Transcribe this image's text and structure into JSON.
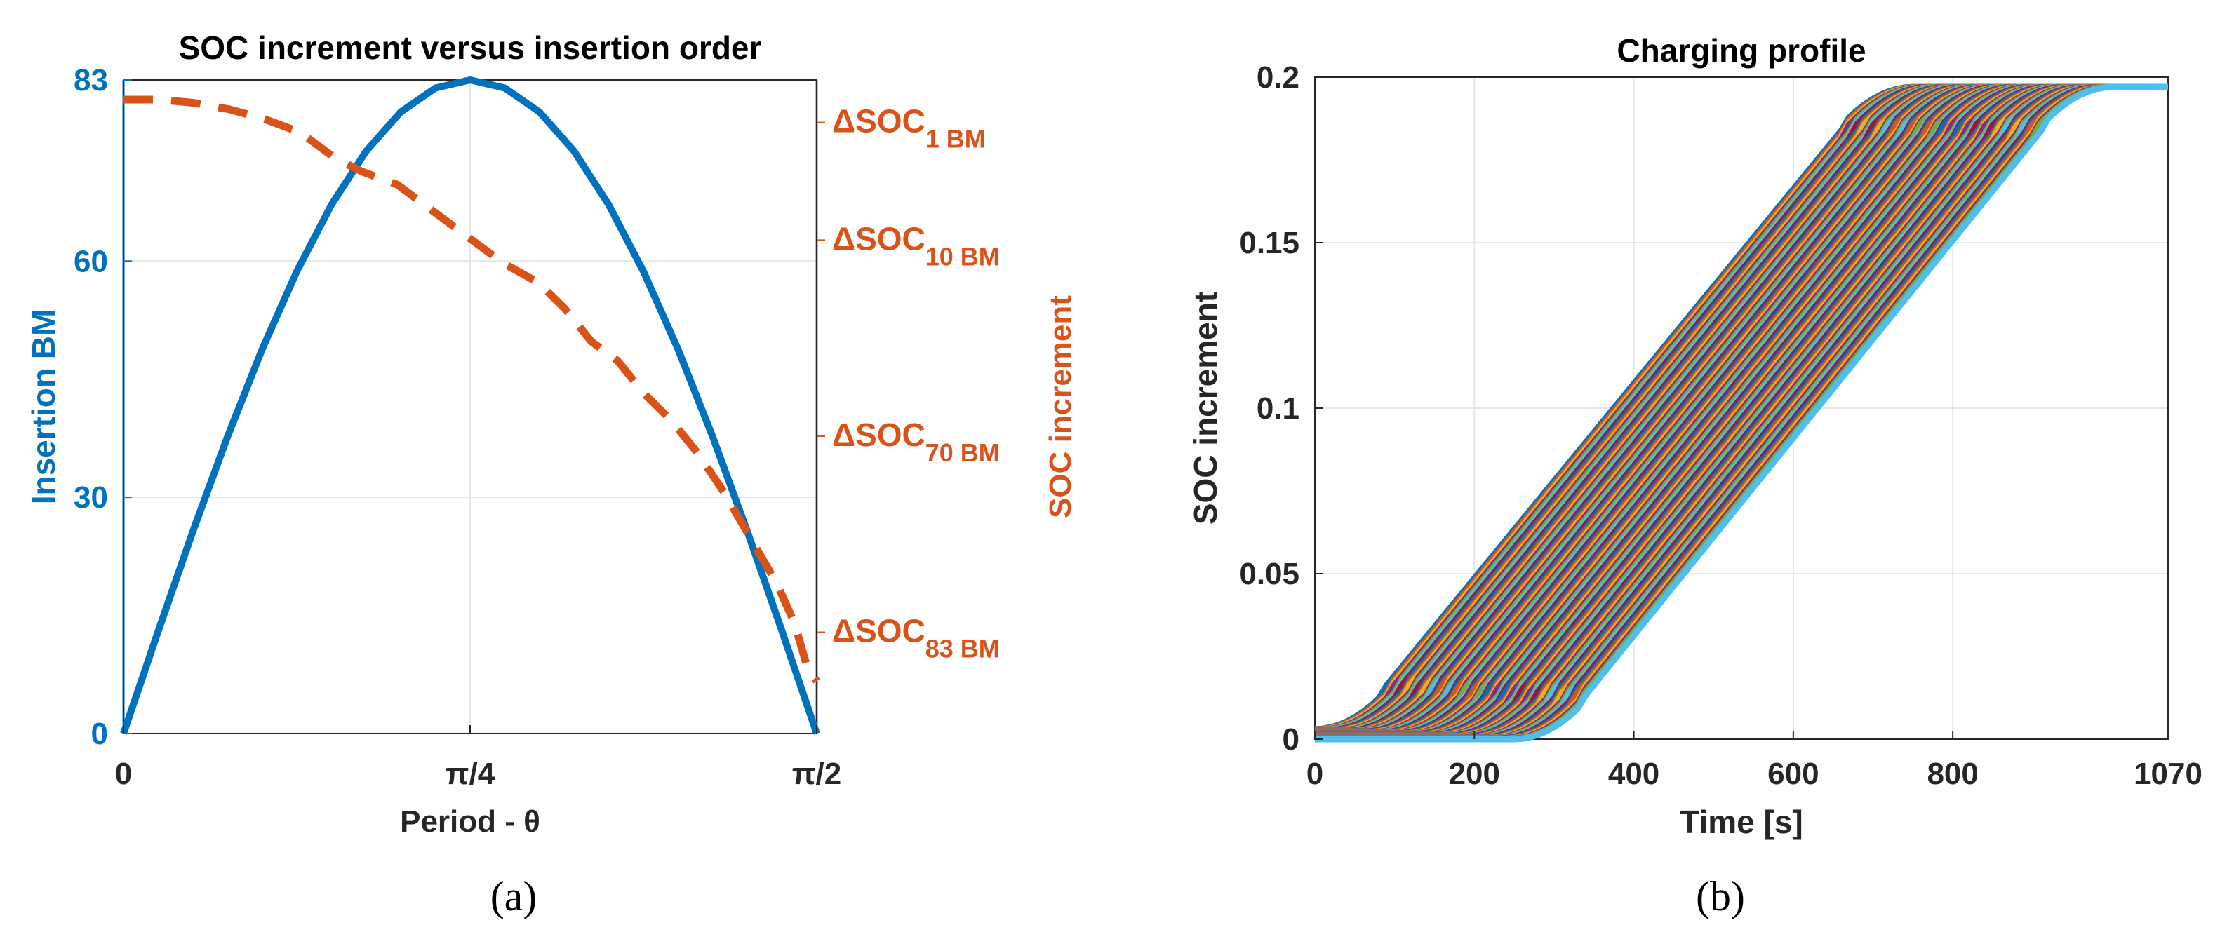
{
  "panels": [
    {
      "caption": "(a)",
      "chart_data": {
        "type": "line",
        "title": "SOC increment versus insertion order",
        "xlabel": "Period - θ",
        "ylabel": "Insertion BM",
        "ylabel_right": "SOC increment",
        "x_ticks": [
          {
            "value": 0,
            "label": "0"
          },
          {
            "value": 0.7854,
            "label": "π/4"
          },
          {
            "value": 1.5708,
            "label": "π/2"
          }
        ],
        "xlim": [
          0,
          1.5708
        ],
        "ylim": [
          0,
          83
        ],
        "y_ticks": [
          {
            "value": 0,
            "label": "0"
          },
          {
            "value": 30,
            "label": "30"
          },
          {
            "value": 60,
            "label": "60"
          },
          {
            "value": 83,
            "label": "83"
          }
        ],
        "right_ylim": [
          0,
          1
        ],
        "right_ticks": [
          {
            "value": 0.935,
            "main": "ΔSOC",
            "sub": "1 BM"
          },
          {
            "value": 0.755,
            "main": "ΔSOC",
            "sub": "10 BM"
          },
          {
            "value": 0.455,
            "main": "ΔSOC",
            "sub": "70 BM"
          },
          {
            "value": 0.155,
            "main": "ΔSOC",
            "sub": "83 BM"
          }
        ],
        "colors": {
          "left": "#0072BD",
          "right": "#D95319",
          "grid": "#e6e6e6",
          "axis": "#262626"
        },
        "series": [
          {
            "name": "Insertion BM",
            "axis": "left",
            "style": "solid",
            "x": [
              0,
              0.0785,
              0.1571,
              0.2356,
              0.3142,
              0.3927,
              0.4712,
              0.5498,
              0.6283,
              0.7069,
              0.7854,
              0.8639,
              0.9425,
              1.021,
              1.0996,
              1.1781,
              1.2566,
              1.3352,
              1.4137,
              1.4923,
              1.5708
            ],
            "y": [
              0,
              12.98,
              25.65,
              37.68,
              48.79,
              58.69,
              67.15,
              73.95,
              78.94,
              81.98,
              83.0,
              81.98,
              78.94,
              73.95,
              67.15,
              58.69,
              48.79,
              37.68,
              25.65,
              12.98,
              0
            ]
          },
          {
            "name": "SOC increment",
            "axis": "right",
            "style": "dashed",
            "x": [
              0,
              0.08,
              0.16,
              0.24,
              0.32,
              0.4,
              0.48,
              0.54,
              0.62,
              0.7,
              0.78,
              0.86,
              0.94,
              1.0,
              1.06,
              1.12,
              1.18,
              1.24,
              1.3,
              1.36,
              1.42,
              1.48,
              1.52,
              1.55,
              1.5708
            ],
            "y": [
              0.97,
              0.97,
              0.965,
              0.955,
              0.94,
              0.92,
              0.88,
              0.86,
              0.84,
              0.8,
              0.76,
              0.72,
              0.69,
              0.65,
              0.6,
              0.57,
              0.52,
              0.48,
              0.43,
              0.37,
              0.3,
              0.23,
              0.17,
              0.1,
              0.08
            ]
          }
        ]
      }
    },
    {
      "caption": "(b)",
      "chart_data": {
        "type": "line",
        "title": "Charging profile",
        "xlabel": "Time [s]",
        "ylabel": "SOC increment",
        "xlim": [
          0,
          1070
        ],
        "ylim": [
          0,
          0.2
        ],
        "x_ticks": [
          {
            "value": 0,
            "label": "0"
          },
          {
            "value": 200,
            "label": "200"
          },
          {
            "value": 400,
            "label": "400"
          },
          {
            "value": 600,
            "label": "600"
          },
          {
            "value": 800,
            "label": "800"
          },
          {
            "value": 1070,
            "label": "1070"
          }
        ],
        "y_ticks": [
          {
            "value": 0,
            "label": "0"
          },
          {
            "value": 0.05,
            "label": "0.05"
          },
          {
            "value": 0.1,
            "label": "0.1"
          },
          {
            "value": 0.15,
            "label": "0.15"
          },
          {
            "value": 0.2,
            "label": "0.2"
          }
        ],
        "series_generator": {
          "count": 83,
          "first_start_s": 0,
          "last_start_s": 250,
          "initial_level": 0.003,
          "saturation": 0.197,
          "ramp_duration_s": 750,
          "palette": [
            "#0072BD",
            "#D95319",
            "#EDB120",
            "#7E2F8E",
            "#77AC30",
            "#4DBEEE",
            "#A2142F"
          ]
        },
        "colors": {
          "grid": "#e6e6e6",
          "axis": "#262626"
        }
      }
    }
  ]
}
